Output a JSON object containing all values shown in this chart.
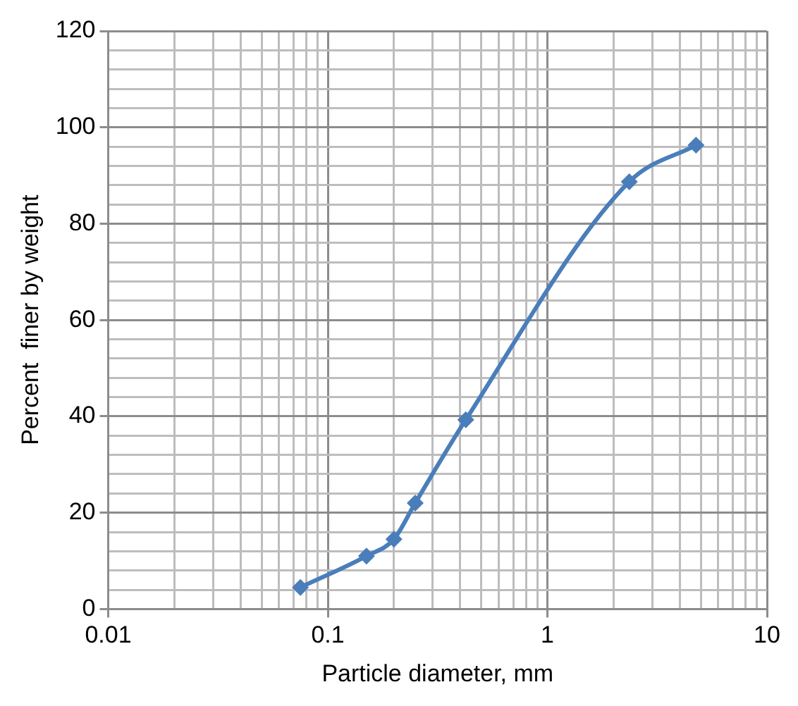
{
  "chart_data": {
    "type": "line",
    "xlabel": "Particle diameter, mm",
    "ylabel": "Percent  finer by weight",
    "log": "x",
    "grid": true,
    "legend": false,
    "marker": "diamond",
    "line_style": "solid",
    "x": [
      0.075,
      0.15,
      0.2,
      0.25,
      0.425,
      2.36,
      4.75
    ],
    "series": [
      {
        "color": "#4a7ebb",
        "values": [
          4.5,
          11,
          14.5,
          22,
          39.3,
          88.7,
          96.3
        ]
      }
    ],
    "xlim": [
      0.01,
      10
    ],
    "xticks": [
      0.01,
      {
        "value": 0.02,
        "label": null
      },
      {
        "value": 0.03,
        "label": null
      },
      {
        "value": 0.04,
        "label": null
      },
      {
        "value": 0.05,
        "label": null
      },
      {
        "value": 0.06,
        "label": null
      },
      {
        "value": 0.07,
        "label": null
      },
      {
        "value": 0.08,
        "label": null
      },
      {
        "value": 0.09,
        "label": null
      },
      0.1,
      {
        "value": 0.2,
        "label": null
      },
      {
        "value": 0.3,
        "label": null
      },
      {
        "value": 0.4,
        "label": null
      },
      {
        "value": 0.5,
        "label": null
      },
      {
        "value": 0.6,
        "label": null
      },
      {
        "value": 0.7,
        "label": null
      },
      {
        "value": 0.8,
        "label": null
      },
      {
        "value": 0.9,
        "label": null
      },
      1,
      {
        "value": 2,
        "label": null
      },
      {
        "value": 3,
        "label": null
      },
      {
        "value": 4,
        "label": null
      },
      {
        "value": 5,
        "label": null
      },
      {
        "value": 6,
        "label": null
      },
      {
        "value": 7,
        "label": null
      },
      {
        "value": 8,
        "label": null
      },
      {
        "value": 9,
        "label": null
      },
      10
    ],
    "ylim": [
      0,
      120
    ],
    "yticks": [
      0,
      {
        "value": 4,
        "label": null
      },
      {
        "value": 8,
        "label": null
      },
      {
        "value": 12,
        "label": null
      },
      {
        "value": 16,
        "label": null
      },
      20,
      {
        "value": 24,
        "label": null
      },
      {
        "value": 28,
        "label": null
      },
      {
        "value": 32,
        "label": null
      },
      {
        "value": 36,
        "label": null
      },
      40,
      {
        "value": 44,
        "label": null
      },
      {
        "value": 48,
        "label": null
      },
      {
        "value": 52,
        "label": null
      },
      {
        "value": 56,
        "label": null
      },
      60,
      {
        "value": 64,
        "label": null
      },
      {
        "value": 68,
        "label": null
      },
      {
        "value": 72,
        "label": null
      },
      {
        "value": 76,
        "label": null
      },
      80,
      {
        "value": 84,
        "label": null
      },
      {
        "value": 88,
        "label": null
      },
      {
        "value": 92,
        "label": null
      },
      {
        "value": 96,
        "label": null
      },
      100,
      {
        "value": 104,
        "label": null
      },
      {
        "value": 108,
        "label": null
      },
      {
        "value": 112,
        "label": null
      },
      {
        "value": 116,
        "label": null
      },
      120
    ]
  }
}
